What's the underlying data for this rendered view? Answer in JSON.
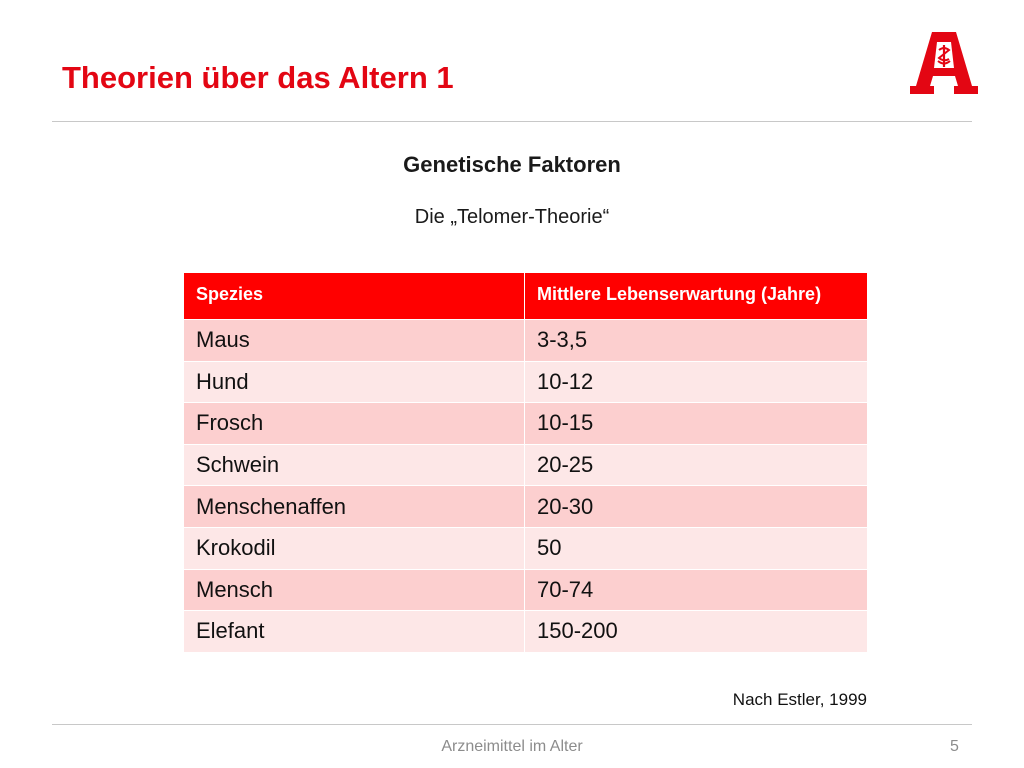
{
  "slide": {
    "title": "Theorien über das Altern 1",
    "subtitle": "Genetische Faktoren",
    "theory": "Die „Telomer-Theorie“",
    "source": "Nach Estler, 1999",
    "footer": "Arzneimittel im  Alter",
    "page_number": "5",
    "logo": {
      "icon": "apotheke-a-logo-icon",
      "color": "#e30613"
    }
  },
  "table": {
    "headers": [
      "Spezies",
      "Mittlere Lebenserwartung (Jahre)"
    ],
    "header_color": "#ff0000",
    "row_colors": [
      "#fccfcf",
      "#fde7e7"
    ],
    "rows": [
      [
        "Maus",
        "3-3,5"
      ],
      [
        "Hund",
        "10-12"
      ],
      [
        "Frosch",
        "10-15"
      ],
      [
        "Schwein",
        "20-25"
      ],
      [
        "Menschenaffen",
        "20-30"
      ],
      [
        "Krokodil",
        "50"
      ],
      [
        "Mensch",
        "70-74"
      ],
      [
        "Elefant",
        "150-200"
      ]
    ]
  }
}
